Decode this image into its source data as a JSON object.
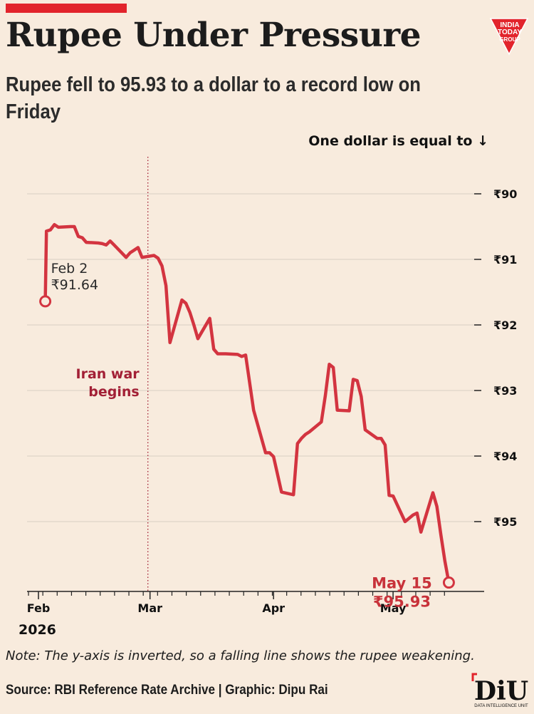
{
  "header": {
    "title": "Rupee Under Pressure",
    "subtitle": "Rupee fell to 95.93 to a dollar to a record low on Friday",
    "logo_text": [
      "INDIA",
      "TODAY",
      "GROUP"
    ]
  },
  "footer": {
    "note": "Note: The y-axis is inverted, so a falling line shows the rupee weakening.",
    "source": "Source: RBI Reference Rate Archive | Graphic: Dipu Rai",
    "diu_logo": "DiU",
    "diu_subtitle": "DATA INTELLIGENCE UNIT"
  },
  "colors": {
    "background": "#f8ebdd",
    "accent": "#e2242c",
    "line": "#d33440",
    "event": "#a21f35"
  },
  "chart_data": {
    "type": "line",
    "title": "Rupee Under Pressure",
    "ylabel": "One dollar is equal to ↓",
    "y_inverted": true,
    "y_prefix": "₹",
    "ylim": [
      90,
      96.3
    ],
    "y_ticks": [
      90,
      91,
      92,
      93,
      94,
      95
    ],
    "y_tick_labels": [
      "₹90",
      "₹91",
      "₹92",
      "₹93",
      "₹94",
      "₹95"
    ],
    "xlim": [
      "2026-02-01",
      "2026-05-21"
    ],
    "x_ticks": [
      {
        "date": "2026-02-01",
        "label": "Feb"
      },
      {
        "date": "2026-03-01",
        "label": "Mar"
      },
      {
        "date": "2026-04-01",
        "label": "Apr"
      },
      {
        "date": "2026-05-01",
        "label": "May"
      }
    ],
    "year_label": "2026",
    "grid": true,
    "series": [
      {
        "points": [
          [
            "2026-02-02",
            91.64
          ],
          [
            "2026-02-03",
            90.57
          ],
          [
            "2026-02-04",
            90.55
          ],
          [
            "2026-02-05",
            90.47
          ],
          [
            "2026-02-06",
            90.51
          ],
          [
            "2026-02-09",
            90.5
          ],
          [
            "2026-02-10",
            90.5
          ],
          [
            "2026-02-11",
            90.65
          ],
          [
            "2026-02-12",
            90.67
          ],
          [
            "2026-02-13",
            90.74
          ],
          [
            "2026-02-16",
            90.75
          ],
          [
            "2026-02-17",
            90.76
          ],
          [
            "2026-02-18",
            90.78
          ],
          [
            "2026-02-19",
            90.72
          ],
          [
            "2026-02-20",
            90.78
          ],
          [
            "2026-02-23",
            90.97
          ],
          [
            "2026-02-24",
            90.9
          ],
          [
            "2026-02-25",
            90.86
          ],
          [
            "2026-02-26",
            90.82
          ],
          [
            "2026-02-27",
            90.97
          ],
          [
            "2026-03-02",
            90.94
          ],
          [
            "2026-03-03",
            90.98
          ],
          [
            "2026-03-04",
            91.1
          ],
          [
            "2026-03-05",
            91.4
          ],
          [
            "2026-03-06",
            92.27
          ],
          [
            "2026-03-09",
            91.62
          ],
          [
            "2026-03-10",
            91.67
          ],
          [
            "2026-03-11",
            91.81
          ],
          [
            "2026-03-12",
            92.0
          ],
          [
            "2026-03-13",
            92.21
          ],
          [
            "2026-03-16",
            91.9
          ],
          [
            "2026-03-17",
            92.37
          ],
          [
            "2026-03-18",
            92.44
          ],
          [
            "2026-03-20",
            92.44
          ],
          [
            "2026-03-23",
            92.45
          ],
          [
            "2026-03-24",
            92.48
          ],
          [
            "2026-03-25",
            92.46
          ],
          [
            "2026-03-27",
            93.3
          ],
          [
            "2026-03-30",
            93.95
          ],
          [
            "2026-03-31",
            93.95
          ],
          [
            "2026-04-01",
            94.01
          ],
          [
            "2026-04-03",
            94.55
          ],
          [
            "2026-04-06",
            94.59
          ],
          [
            "2026-04-07",
            93.81
          ],
          [
            "2026-04-08",
            93.73
          ],
          [
            "2026-04-09",
            93.67
          ],
          [
            "2026-04-10",
            93.63
          ],
          [
            "2026-04-13",
            93.48
          ],
          [
            "2026-04-14",
            93.08
          ],
          [
            "2026-04-15",
            92.6
          ],
          [
            "2026-04-16",
            92.65
          ],
          [
            "2026-04-17",
            93.3
          ],
          [
            "2026-04-20",
            93.31
          ],
          [
            "2026-04-21",
            92.83
          ],
          [
            "2026-04-22",
            92.85
          ],
          [
            "2026-04-23",
            93.09
          ],
          [
            "2026-04-24",
            93.6
          ],
          [
            "2026-04-27",
            93.73
          ],
          [
            "2026-04-28",
            93.73
          ],
          [
            "2026-04-29",
            93.83
          ],
          [
            "2026-04-30",
            94.6
          ],
          [
            "2026-05-01",
            94.61
          ],
          [
            "2026-05-04",
            95.0
          ],
          [
            "2026-05-06",
            94.9
          ],
          [
            "2026-05-07",
            94.87
          ],
          [
            "2026-05-08",
            95.16
          ],
          [
            "2026-05-11",
            94.56
          ],
          [
            "2026-05-12",
            94.77
          ],
          [
            "2026-05-13",
            95.2
          ],
          [
            "2026-05-14",
            95.6
          ],
          [
            "2026-05-15",
            95.93
          ]
        ]
      }
    ],
    "annotations": {
      "start": {
        "date": "2026-02-02",
        "value": 91.64,
        "line1": "Feb 2",
        "line2": "₹91.64"
      },
      "end": {
        "date": "2026-05-15",
        "value": 95.93,
        "line1": "May 15",
        "line2": "₹95.93"
      },
      "event": {
        "date": "2026-03-01",
        "line1": "Iran war",
        "line2": "begins"
      }
    }
  }
}
